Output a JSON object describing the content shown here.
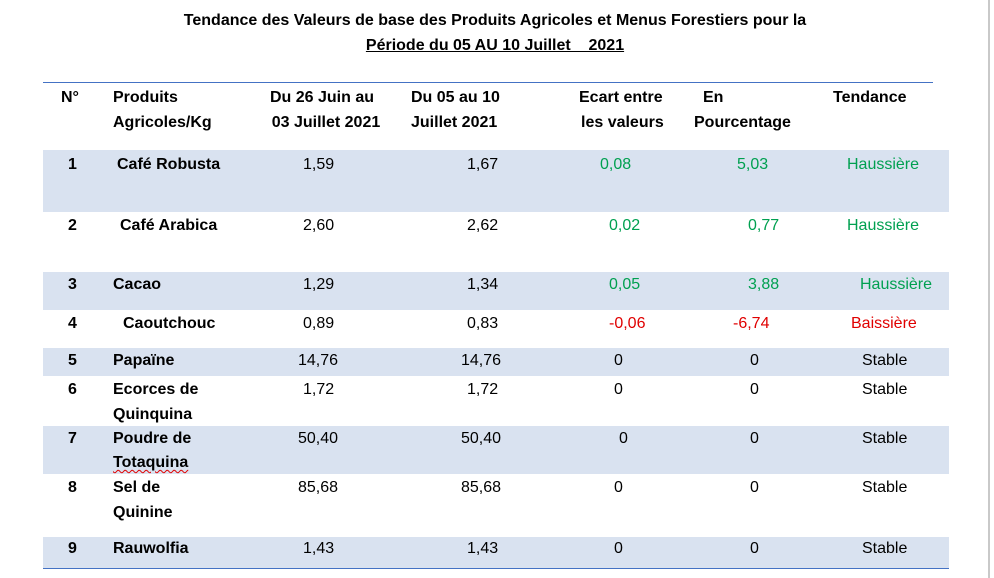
{
  "title": {
    "line1": "Tendance des Valeurs de base des Produits Agricoles et Menus Forestiers pour la",
    "line2": "Période du 05 AU 10 Juillet    2021"
  },
  "headers": {
    "no": "N°",
    "product_l1": "Produits",
    "product_l2": "Agricoles/Kg",
    "period1_l1": "Du 26 Juin au",
    "period1_l2": "03 Juillet 2021",
    "period2_l1": "Du 05 au 10",
    "period2_l2": "Juillet 2021",
    "gap_l1": "Ecart entre",
    "gap_l2": "les valeurs",
    "pct_l1": "En",
    "pct_l2": "Pourcentage",
    "trend": "Tendance"
  },
  "colors": {
    "band": "#d9e2f0",
    "rule": "#4472c4",
    "up": "#00a050",
    "down": "#e00000"
  },
  "rows": [
    {
      "no": "1",
      "product_l1": "Café Robusta",
      "product_l2": "",
      "v1": "1,59",
      "v2": "1,67",
      "gap": "0,08",
      "pct": "5,03",
      "trend": "Haussière"
    },
    {
      "no": "2",
      "product_l1": "Café Arabica",
      "product_l2": "",
      "v1": "2,60",
      "v2": "2,62",
      "gap": "0,02",
      "pct": "0,77",
      "trend": "Haussière"
    },
    {
      "no": "3",
      "product_l1": "Cacao",
      "product_l2": "",
      "v1": "1,29",
      "v2": "1,34",
      "gap": "0,05",
      "pct": "3,88",
      "trend": "Haussière"
    },
    {
      "no": "4",
      "product_l1": "Caoutchouc",
      "product_l2": "",
      "v1": "0,89",
      "v2": "0,83",
      "gap": "-0,06",
      "pct": "-6,74",
      "trend": "Baissière"
    },
    {
      "no": "5",
      "product_l1": "Papaïne",
      "product_l2": "",
      "v1": "14,76",
      "v2": "14,76",
      "gap": "0",
      "pct": "0",
      "trend": "Stable"
    },
    {
      "no": "6",
      "product_l1": "Ecorces de",
      "product_l2": "Quinquina",
      "v1": "1,72",
      "v2": "1,72",
      "gap": "0",
      "pct": "0",
      "trend": "Stable"
    },
    {
      "no": "7",
      "product_l1": "Poudre de",
      "product_l2": "Totaquina",
      "v1": "50,40",
      "v2": "50,40",
      "gap": "0",
      "pct": "0",
      "trend": "Stable"
    },
    {
      "no": "8",
      "product_l1": "Sel de",
      "product_l2": "Quinine",
      "v1": "85,68",
      "v2": "85,68",
      "gap": "0",
      "pct": "0",
      "trend": "Stable"
    },
    {
      "no": "9",
      "product_l1": "Rauwolfia",
      "product_l2": "",
      "v1": "1,43",
      "v2": "1,43",
      "gap": "0",
      "pct": "0",
      "trend": "Stable"
    }
  ]
}
